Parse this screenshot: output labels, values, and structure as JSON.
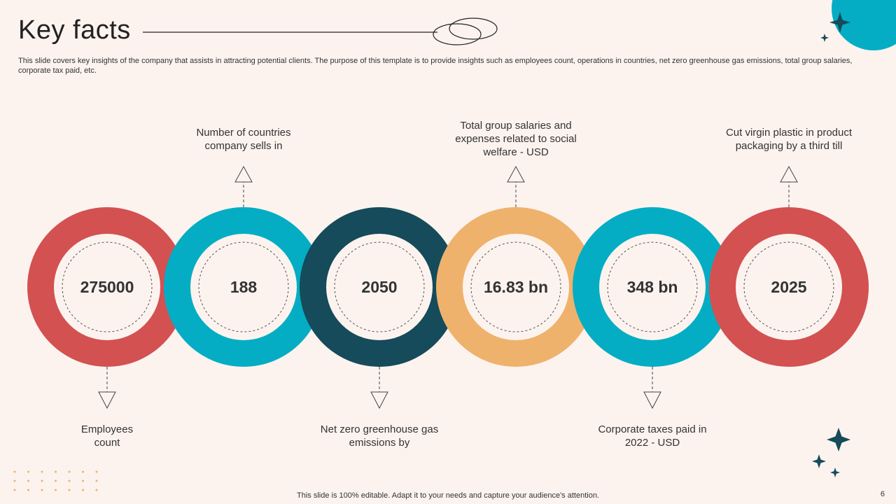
{
  "title": "Key facts",
  "description": "This slide covers key insights of the company that assists in attracting potential clients. The purpose of this template is to provide insights such as employees count, operations in countries, net zero greenhouse gas emissions, total group salaries, corporate tax paid, etc.",
  "facts": [
    {
      "value": "275000",
      "label": "Employees count",
      "color": "#d35151"
    },
    {
      "value": "188",
      "label": "Number of countries company sells in",
      "color": "#04adc4"
    },
    {
      "value": "2050",
      "label": "Net zero greenhouse gas emissions by",
      "color": "#154b5a"
    },
    {
      "value": "16.83 bn",
      "label": "Total group salaries and expenses related to social welfare - USD",
      "color": "#efb26c"
    },
    {
      "value": "348 bn",
      "label": "Corporate taxes paid in 2022 - USD",
      "color": "#04adc4"
    },
    {
      "value": "2025",
      "label": "Cut virgin plastic in product packaging by a third till",
      "color": "#d35151"
    }
  ],
  "footer": "This slide is 100% editable. Adapt it to your needs and capture your audience's attention.",
  "page_number": "6"
}
